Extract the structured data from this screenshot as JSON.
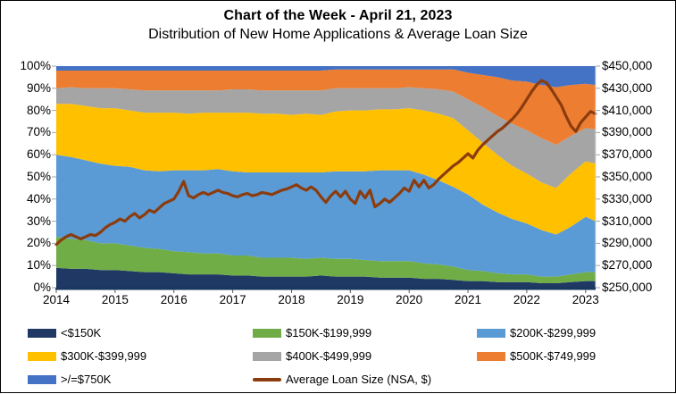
{
  "header": {
    "title": "Chart of the Week - April 21, 2023",
    "subtitle": "Distribution of New Home Applications & Average Loan Size"
  },
  "colors": {
    "navy": "#1F3864",
    "green": "#70AD47",
    "light_blue": "#5B9BD5",
    "yellow": "#FFC000",
    "gray": "#A5A5A5",
    "orange": "#ED7D31",
    "blue": "#4472C4",
    "loan_line": "#8B3C0E",
    "axis_line": "#17375E",
    "tick": "#A6A6A6",
    "right_border": "#D9D9D9"
  },
  "legend": {
    "items": [
      {
        "label": "<$150K",
        "color": "#1F3864",
        "shape": "box"
      },
      {
        "label": "$150K-$199,999",
        "color": "#70AD47",
        "shape": "box"
      },
      {
        "label": "$200K-$299,999",
        "color": "#5B9BD5",
        "shape": "box"
      },
      {
        "label": "$300K-$399,999",
        "color": "#FFC000",
        "shape": "box"
      },
      {
        "label": "$400K-$499,999",
        "color": "#A5A5A5",
        "shape": "box"
      },
      {
        "label": "$500K-$749,999",
        "color": "#ED7D31",
        "shape": "box"
      },
      {
        "label": ">/=$750K",
        "color": "#4472C4",
        "shape": "box"
      },
      {
        "label": "Average Loan Size (NSA, $)",
        "color": "#8B3C0E",
        "shape": "line"
      }
    ]
  },
  "chart_data": {
    "type": "area",
    "subtype": "100-percent-stacked-area-with-line-overlay",
    "title": "Chart of the Week - April 21, 2023",
    "subtitle": "Distribution of New Home Applications & Average Loan Size",
    "x_range": [
      2014,
      2023.17
    ],
    "x_ticks": [
      "2014",
      "2015",
      "2016",
      "2017",
      "2018",
      "2019",
      "2020",
      "2021",
      "2022",
      "2023"
    ],
    "left_axis": {
      "unit": "percent",
      "min": 0,
      "max": 100,
      "ticks": [
        "100%",
        "90%",
        "80%",
        "70%",
        "60%",
        "50%",
        "40%",
        "30%",
        "20%",
        "10%",
        "0%"
      ]
    },
    "right_axis": {
      "unit": "usd",
      "min": 250000,
      "max": 450000,
      "ticks": [
        "$450,000",
        "$430,000",
        "$410,000",
        "$390,000",
        "$370,000",
        "$350,000",
        "$330,000",
        "$310,000",
        "$290,000",
        "$270,000",
        "$250,000"
      ]
    },
    "grid": false,
    "legend_position": "bottom-left",
    "stack": {
      "x": [
        2014,
        2014.25,
        2014.5,
        2014.75,
        2015,
        2015.25,
        2015.5,
        2015.75,
        2016,
        2016.25,
        2016.5,
        2016.75,
        2017,
        2017.25,
        2017.5,
        2017.75,
        2018,
        2018.25,
        2018.5,
        2018.75,
        2019,
        2019.25,
        2019.5,
        2019.75,
        2020,
        2020.25,
        2020.5,
        2020.75,
        2021,
        2021.25,
        2021.5,
        2021.75,
        2022,
        2022.25,
        2022.5,
        2022.75,
        2023,
        2023.17
      ],
      "series": [
        {
          "name": "<$150K",
          "color": "#1F3864",
          "values": [
            9,
            8.5,
            8.5,
            8,
            8,
            7.5,
            7,
            7,
            6.5,
            6,
            6,
            6,
            5.5,
            5.5,
            5,
            5,
            5,
            5,
            5.5,
            5,
            5,
            5,
            4.5,
            4.5,
            4.5,
            4,
            4,
            3.5,
            3,
            3,
            2.5,
            2.5,
            2.5,
            2,
            2,
            2.5,
            3,
            3
          ]
        },
        {
          "name": "$150K-$199,999",
          "color": "#70AD47",
          "values": [
            14,
            13.5,
            13,
            12,
            12,
            11.5,
            11,
            10.5,
            10,
            10,
            9.5,
            9.5,
            9,
            9,
            8.5,
            8.5,
            8.5,
            8,
            8,
            8,
            8,
            7.5,
            7.5,
            7.5,
            7.5,
            7,
            6.5,
            6,
            5,
            4.5,
            4,
            3.5,
            3.5,
            3,
            3,
            3.5,
            4,
            4
          ]
        },
        {
          "name": "$200K-$299,999",
          "color": "#5B9BD5",
          "values": [
            37,
            37,
            36,
            36,
            35,
            35.5,
            35,
            35,
            36.5,
            37,
            37.5,
            38,
            38,
            37.5,
            38.5,
            38.5,
            38.5,
            39,
            38.5,
            39.5,
            39.5,
            40,
            41,
            41,
            41,
            40,
            38,
            36,
            34,
            30,
            27.5,
            25,
            23,
            21,
            19,
            21.5,
            25,
            23
          ]
        },
        {
          "name": "$300K-$399,999",
          "color": "#FFC000",
          "values": [
            23,
            24,
            24.5,
            25,
            26,
            25.5,
            26,
            26.5,
            26,
            25.5,
            26,
            25.5,
            26.5,
            27,
            26.5,
            26.5,
            26,
            26.5,
            26,
            27,
            27.5,
            27.5,
            27.5,
            27.5,
            28,
            29,
            30,
            31,
            29,
            28,
            26,
            24,
            22.5,
            21.5,
            21,
            24,
            25,
            26
          ]
        },
        {
          "name": "$400K-$499,999",
          "color": "#A5A5A5",
          "values": [
            7,
            7.5,
            8,
            9,
            9,
            9.5,
            10,
            10,
            10,
            10.5,
            10,
            10,
            10.5,
            10.5,
            10.5,
            10.5,
            11,
            10.5,
            11,
            10.5,
            10,
            10,
            9.5,
            9.5,
            9.5,
            10,
            11,
            12,
            14,
            16,
            17.5,
            19,
            19.5,
            20,
            19.5,
            17,
            15,
            15.5
          ]
        },
        {
          "name": "$500K-$749,999",
          "color": "#ED7D31",
          "values": [
            8,
            7.5,
            8,
            8,
            8,
            8.5,
            9,
            9,
            9,
            9,
            9,
            9,
            8.5,
            8.5,
            9,
            9,
            9,
            9,
            9,
            8.5,
            8.5,
            8.5,
            8.5,
            8.5,
            8,
            8.5,
            9,
            10,
            12,
            14.5,
            17.5,
            19.5,
            22,
            24,
            26,
            23,
            20,
            20
          ]
        },
        {
          "name": ">/=$750K",
          "color": "#4472C4",
          "values": [
            2,
            2,
            2,
            2,
            2,
            2,
            2,
            2,
            2,
            2,
            2,
            2,
            2,
            2,
            2,
            2,
            2,
            2,
            2,
            1.5,
            1.5,
            1.5,
            1.5,
            1.5,
            1.5,
            1.5,
            1.5,
            1.5,
            3,
            4,
            5,
            6.5,
            7,
            8.5,
            9.5,
            8.5,
            8,
            8.5
          ]
        }
      ]
    },
    "line": {
      "name": "Average Loan Size (NSA, $)",
      "color": "#8B3C0E",
      "x_start": 2014,
      "x_step_months": 1,
      "values": [
        289000,
        293000,
        296000,
        298000,
        296000,
        294000,
        296000,
        298000,
        297000,
        300000,
        304000,
        307000,
        309000,
        312000,
        310000,
        314000,
        317000,
        313000,
        316000,
        320000,
        318000,
        322000,
        326000,
        328000,
        330000,
        337000,
        346000,
        333000,
        331000,
        334000,
        336000,
        334000,
        336000,
        338000,
        336000,
        335000,
        333000,
        332000,
        334000,
        335000,
        333000,
        334000,
        336000,
        335000,
        334000,
        336000,
        338000,
        339000,
        341000,
        343000,
        340000,
        338000,
        341000,
        338000,
        332000,
        327000,
        333000,
        337000,
        332000,
        337000,
        330000,
        326000,
        337000,
        331000,
        338000,
        323000,
        326000,
        330000,
        327000,
        331000,
        335000,
        340000,
        337000,
        347000,
        341000,
        347000,
        340000,
        343000,
        348000,
        352000,
        356000,
        360000,
        363000,
        367000,
        371000,
        367000,
        374000,
        379000,
        383000,
        387000,
        391000,
        394000,
        398000,
        402000,
        407000,
        413000,
        420000,
        427000,
        433000,
        437000,
        435000,
        429000,
        422000,
        415000,
        405000,
        396000,
        391000,
        399000,
        404000,
        409000,
        407000
      ]
    }
  }
}
